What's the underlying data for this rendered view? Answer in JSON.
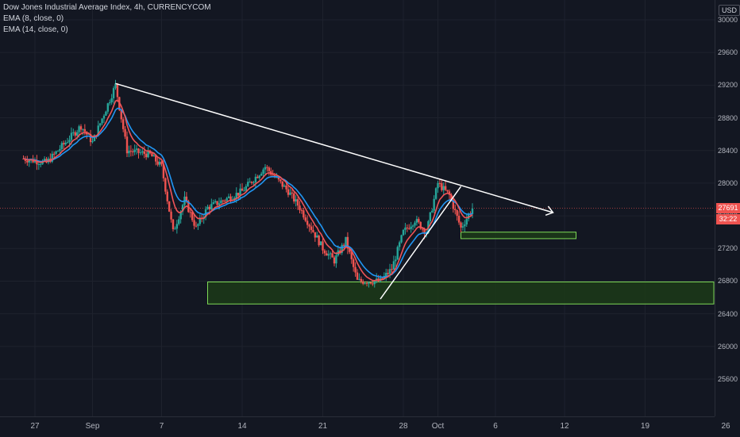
{
  "legend": {
    "title": "Dow Jones Industrial Average Index, 4h, CURRENCYCOM",
    "ema8": "EMA (8, close, 0)",
    "ema14": "EMA (14, close, 0)"
  },
  "axis": {
    "currency": "USD",
    "price_label": "27691",
    "countdown_label": "32:22"
  },
  "colors": {
    "background": "#131722",
    "up": "#26a69a",
    "down": "#ef5350",
    "ema8": "#f05458",
    "ema14": "#2196f3",
    "zone_fill": "#1c3a17",
    "zone_stroke": "#7ed957",
    "trendline": "#ffffff"
  },
  "chart_data": {
    "type": "candlestick",
    "ylim": [
      25400,
      30100
    ],
    "yticks": [
      25600,
      26000,
      26400,
      26800,
      27200,
      27600,
      28000,
      28400,
      28800,
      29200,
      29600,
      30000
    ],
    "xticks": [
      "27",
      "Sep",
      "7",
      "14",
      "21",
      "28",
      "Oct",
      "6",
      "12",
      "19",
      "26"
    ],
    "current_price": 27691,
    "price_path": [
      [
        "Aug 26",
        28300
      ],
      [
        "Aug 28",
        28250
      ],
      [
        "Aug 31",
        28700
      ],
      [
        "Sep 1",
        28500
      ],
      [
        "Sep 3",
        29200
      ],
      [
        "Sep 4",
        28400
      ],
      [
        "Sep 6",
        28350
      ],
      [
        "Sep 7",
        28200
      ],
      [
        "Sep 8",
        27400
      ],
      [
        "Sep 9",
        27800
      ],
      [
        "Sep 10",
        27450
      ],
      [
        "Sep 11",
        27700
      ],
      [
        "Sep 14",
        27900
      ],
      [
        "Sep 16",
        28200
      ],
      [
        "Sep 18",
        27900
      ],
      [
        "Sep 19",
        27700
      ],
      [
        "Sep 21",
        27200
      ],
      [
        "Sep 22",
        27050
      ],
      [
        "Sep 23",
        27300
      ],
      [
        "Sep 24",
        26800
      ],
      [
        "Sep 26",
        26800
      ],
      [
        "Sep 27",
        26950
      ],
      [
        "Sep 28",
        27400
      ],
      [
        "Sep 29",
        27550
      ],
      [
        "Sep 30",
        27400
      ],
      [
        "Oct 1",
        28000
      ],
      [
        "Oct 2",
        27850
      ],
      [
        "Oct 3",
        27450
      ],
      [
        "Oct 4",
        27691
      ]
    ],
    "support_zones": [
      {
        "from": "Sep 11",
        "to": "Nov 1",
        "low": 26520,
        "high": 26790
      },
      {
        "from": "Oct 3",
        "to": "Oct 13",
        "low": 27320,
        "high": 27400
      }
    ],
    "trendlines": [
      {
        "from": [
          "Sep 3",
          29220
        ],
        "to": [
          "Oct 3",
          27960
        ],
        "arrow_to": [
          "Oct 11",
          27640
        ]
      },
      {
        "from": [
          "Sep 26",
          26580
        ],
        "to": [
          "Oct 3",
          27960
        ]
      }
    ],
    "series": [
      "EMA (8, close, 0)",
      "EMA (14, close, 0)"
    ]
  }
}
